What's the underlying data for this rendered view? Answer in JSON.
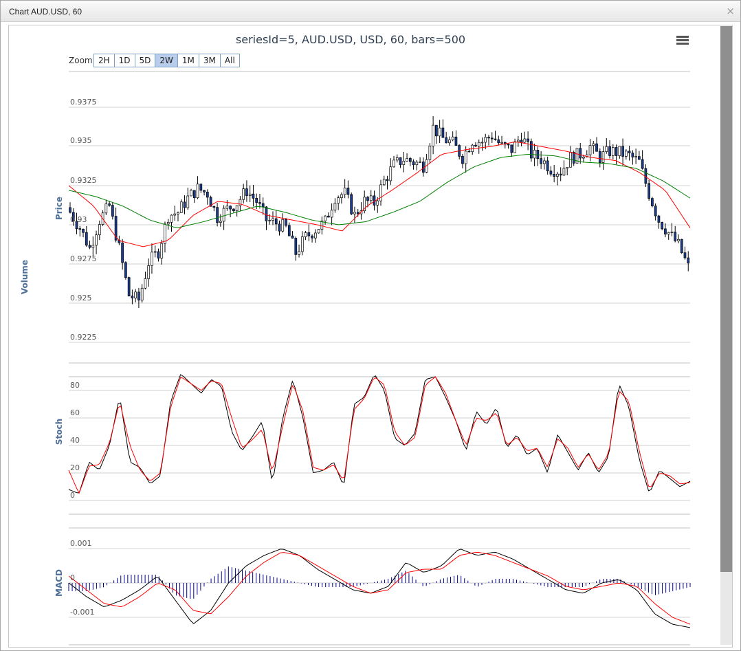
{
  "window": {
    "title": "Chart AUD.USD, 60",
    "close_glyph": "×"
  },
  "toolbar": {
    "zoom_label": "Zoom",
    "zoom_buttons": [
      "2H",
      "1D",
      "5D",
      "2W",
      "1M",
      "3M",
      "All"
    ],
    "active_zoom": "2W",
    "menu_icon": "hamburger-menu-icon"
  },
  "chart_data": [
    {
      "type": "candlestick",
      "title": "seriesId=5, AUD.USD, USD, 60, bars=500",
      "ylabel": "Price",
      "yticks": [
        "0.9225",
        "0.925",
        "0.9275",
        "0.93",
        "0.9325",
        "0.935",
        "0.9375"
      ],
      "ylim": [
        0.9215,
        0.939
      ],
      "series": [
        {
          "name": "",
          "color": "#ff0000",
          "anchors": [
            0.9325,
            0.9312,
            0.929,
            0.9286,
            0.929,
            0.9306,
            0.9315,
            0.9313,
            0.9306,
            0.9303,
            0.93,
            0.9296,
            0.9312,
            0.9322,
            0.9333,
            0.9345,
            0.9348,
            0.935,
            0.9353,
            0.935,
            0.9347,
            0.9343,
            0.9341,
            0.9333,
            0.9322,
            0.9298
          ]
        },
        {
          "name": "",
          "color": "#008000",
          "anchors": [
            0.9322,
            0.9318,
            0.9312,
            0.9303,
            0.9298,
            0.9302,
            0.9307,
            0.9312,
            0.9308,
            0.9303,
            0.93,
            0.9302,
            0.9308,
            0.9315,
            0.9327,
            0.9337,
            0.9343,
            0.9345,
            0.9344,
            0.934,
            0.9339,
            0.9336,
            0.9328,
            0.9317
          ]
        }
      ],
      "candles": {
        "count": 190,
        "close_anchors": [
          0.9308,
          0.9298,
          0.9285,
          0.9303,
          0.9312,
          0.9285,
          0.9255,
          0.9252,
          0.9276,
          0.9283,
          0.9306,
          0.9308,
          0.9317,
          0.9323,
          0.932,
          0.9305,
          0.931,
          0.9314,
          0.9322,
          0.9315,
          0.9303,
          0.9301,
          0.9298,
          0.9282,
          0.9292,
          0.9297,
          0.9302,
          0.9318,
          0.932,
          0.9306,
          0.9315,
          0.9314,
          0.9328,
          0.9338,
          0.9342,
          0.934,
          0.9338,
          0.9362,
          0.9355,
          0.9352,
          0.9343,
          0.9354,
          0.9353,
          0.9357,
          0.935,
          0.9348,
          0.9357,
          0.9345,
          0.9342,
          0.9336,
          0.9334,
          0.9343,
          0.9345,
          0.935,
          0.9343,
          0.9347,
          0.9346,
          0.9344,
          0.934,
          0.932,
          0.9303,
          0.9295,
          0.9287,
          0.9273
        ]
      }
    },
    {
      "type": "line",
      "ylabel": "Stoch",
      "yticks": [
        "0",
        "20",
        "40",
        "60",
        "80"
      ],
      "ylim": [
        0,
        100
      ],
      "series": [
        {
          "name": "",
          "color": "#000000",
          "anchors": [
            8,
            5,
            28,
            22,
            40,
            76,
            28,
            24,
            12,
            18,
            72,
            92,
            85,
            78,
            88,
            83,
            50,
            36,
            46,
            58,
            12,
            60,
            88,
            60,
            20,
            22,
            28,
            10,
            70,
            75,
            92,
            80,
            45,
            40,
            49,
            88,
            90,
            75,
            58,
            36,
            65,
            55,
            68,
            38,
            48,
            33,
            38,
            20,
            48,
            35,
            22,
            35,
            20,
            32,
            85,
            68,
            30,
            5,
            22,
            16,
            10,
            14
          ]
        },
        {
          "name": "",
          "color": "#ff0000",
          "anchors": [
            22,
            5,
            25,
            26,
            42,
            72,
            40,
            22,
            14,
            20,
            68,
            90,
            85,
            80,
            87,
            85,
            60,
            38,
            44,
            52,
            20,
            54,
            85,
            65,
            24,
            22,
            26,
            14,
            66,
            74,
            90,
            84,
            50,
            40,
            46,
            84,
            90,
            78,
            58,
            40,
            60,
            58,
            64,
            40,
            46,
            36,
            38,
            24,
            45,
            38,
            24,
            34,
            22,
            34,
            80,
            72,
            36,
            8,
            20,
            18,
            12,
            13
          ]
        }
      ]
    },
    {
      "type": "line",
      "ylabel": "MACD",
      "yticks": [
        "-0.001",
        "0",
        "0.001"
      ],
      "ylim": [
        -0.0014,
        0.00125
      ],
      "series": [
        {
          "name": "",
          "color": "#000000",
          "anchors": [
            0.0,
            -0.0004,
            -0.0007,
            -0.0005,
            -0.0002,
            0.0002,
            -0.0005,
            -0.0012,
            -0.0008,
            0.0,
            0.0005,
            0.0008,
            0.001,
            0.0008,
            0.0004,
            0.0001,
            -0.0002,
            -0.0003,
            -0.0001,
            0.0006,
            0.0003,
            0.0005,
            0.001,
            0.0008,
            0.0009,
            0.0007,
            0.0004,
            0.0001,
            -0.0002,
            -0.0003,
            0.0,
            0.0001,
            -0.0002,
            -0.0009,
            -0.0012,
            -0.0013
          ]
        },
        {
          "name": "",
          "color": "#ff0000",
          "anchors": [
            0.0002,
            -0.0002,
            -0.0006,
            -0.0007,
            -0.0004,
            0.0,
            -0.0002,
            -0.0008,
            -0.0009,
            -0.0004,
            0.0002,
            0.0006,
            0.0009,
            0.0008,
            0.0005,
            0.0002,
            -0.0001,
            -0.0003,
            -0.0002,
            0.0003,
            0.0004,
            0.0004,
            0.0008,
            0.0009,
            0.0008,
            0.0006,
            0.0004,
            0.0002,
            -0.0001,
            -0.0002,
            -0.0001,
            0.0,
            -0.0001,
            -0.0006,
            -0.001,
            -0.0012
          ]
        },
        {
          "name": "",
          "color": "#00008b",
          "kind": "histogram"
        }
      ]
    }
  ],
  "side_label": "Volume"
}
